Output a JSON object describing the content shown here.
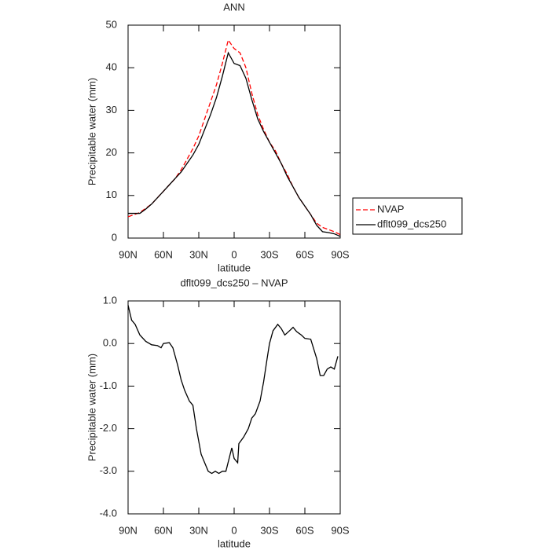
{
  "chart_data": [
    {
      "type": "line",
      "title": "ANN",
      "x_label": "latitude",
      "y_label": "Precipitable water (mm)",
      "x": [
        90,
        85,
        80,
        75,
        70,
        65,
        60,
        55,
        50,
        45,
        40,
        35,
        30,
        25,
        20,
        15,
        10,
        5,
        0,
        -5,
        -10,
        -15,
        -20,
        -25,
        -30,
        -35,
        -40,
        -45,
        -50,
        -55,
        -60,
        -65,
        -70,
        -75,
        -80,
        -85,
        -90
      ],
      "series": [
        {
          "name": "NVAP",
          "color": "#ff0000",
          "style": "dashed",
          "values": [
            5,
            5.5,
            6,
            7,
            8,
            9.5,
            11,
            12.5,
            14,
            16,
            18.5,
            21,
            24,
            28,
            32,
            36,
            41,
            46.5,
            44.5,
            43.5,
            40,
            34,
            29,
            25.5,
            22.5,
            20.5,
            17.5,
            15,
            12,
            9.5,
            7.5,
            5.5,
            3.5,
            2.5,
            2,
            1.5,
            0.8
          ]
        },
        {
          "name": "dflt099_dcs250",
          "color": "#000000",
          "style": "solid",
          "values": [
            5.8,
            5.8,
            5.8,
            6.8,
            8,
            9.5,
            11,
            12.5,
            14,
            15.5,
            17.5,
            19.5,
            22,
            25.5,
            29,
            33,
            38,
            43.5,
            41,
            40.5,
            37.5,
            32.5,
            28,
            25,
            22.5,
            20,
            17.5,
            14.5,
            12,
            9.5,
            7.5,
            5.5,
            3,
            1.5,
            1.3,
            1,
            0.4
          ]
        }
      ],
      "xlim": [
        90,
        -90
      ],
      "xticks": [
        {
          "value": 90,
          "label": "90N"
        },
        {
          "value": 60,
          "label": "60N"
        },
        {
          "value": 30,
          "label": "30N"
        },
        0,
        {
          "value": -30,
          "label": "30S"
        },
        {
          "value": -60,
          "label": "60S"
        },
        {
          "value": -90,
          "label": "90S"
        }
      ],
      "ylim": [
        0,
        50
      ],
      "yticks": [
        0,
        10,
        20,
        30,
        40,
        50
      ],
      "legend": "right"
    },
    {
      "type": "line",
      "title": "dflt099_dcs250 – NVAP",
      "x_label": "latitude",
      "y_label": "Precipitable water (mm)",
      "x": [
        90,
        87,
        84,
        80,
        75,
        70,
        65,
        62,
        60,
        55,
        52,
        48,
        45,
        42,
        38,
        35,
        32,
        28,
        25,
        22,
        19,
        16,
        13,
        10,
        7,
        2,
        0,
        -3,
        -4,
        -8,
        -12,
        -15,
        -18,
        -22,
        -25,
        -28,
        -30,
        -33,
        -37,
        -40,
        -43,
        -47,
        -50,
        -53,
        -57,
        -60,
        -65,
        -70,
        -73,
        -76,
        -79,
        -82,
        -85,
        -88
      ],
      "color": "#000000",
      "values": [
        0.9,
        0.55,
        0.45,
        0.2,
        0.05,
        -0.03,
        -0.05,
        -0.1,
        0,
        0.02,
        -0.1,
        -0.5,
        -0.85,
        -1.1,
        -1.35,
        -1.45,
        -2.0,
        -2.6,
        -2.8,
        -3.0,
        -3.05,
        -3.0,
        -3.05,
        -3.0,
        -3.0,
        -2.45,
        -2.7,
        -2.8,
        -2.35,
        -2.2,
        -2.0,
        -1.75,
        -1.65,
        -1.35,
        -0.9,
        -0.35,
        0.0,
        0.3,
        0.45,
        0.35,
        0.2,
        0.3,
        0.38,
        0.28,
        0.2,
        0.12,
        0.1,
        -0.35,
        -0.75,
        -0.75,
        -0.6,
        -0.55,
        -0.6,
        -0.3
      ],
      "xlim": [
        90,
        -90
      ],
      "xticks": [
        {
          "value": 90,
          "label": "90N"
        },
        {
          "value": 60,
          "label": "60N"
        },
        {
          "value": 30,
          "label": "30N"
        },
        0,
        {
          "value": -30,
          "label": "30S"
        },
        {
          "value": -60,
          "label": "60S"
        },
        {
          "value": -90,
          "label": "90S"
        }
      ],
      "ylim": [
        -4,
        1
      ],
      "yticks": [
        {
          "value": -4,
          "label": "-4.0"
        },
        {
          "value": -3,
          "label": "-3.0"
        },
        {
          "value": -2,
          "label": "-2.0"
        },
        {
          "value": -1,
          "label": "-1.0"
        },
        {
          "value": 0,
          "label": "0.0"
        },
        {
          "value": 1,
          "label": "1.0"
        }
      ]
    }
  ]
}
